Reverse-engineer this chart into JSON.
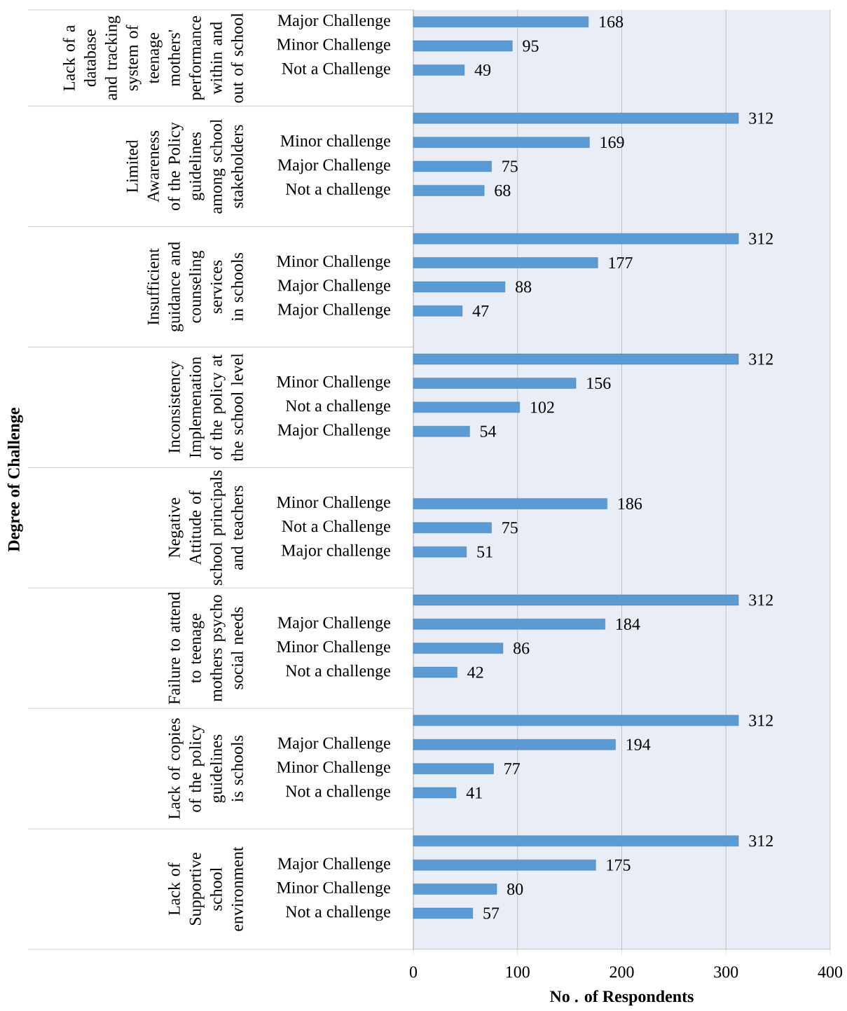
{
  "chart_data": {
    "type": "bar",
    "orientation": "horizontal",
    "xlabel": "No . of Respondents",
    "categories": [
      "Major Challenge",
      "Minor Challenge",
      "Not a Challenge",
      null,
      "Minor   challenge",
      "Major Challenge",
      "Not a challenge",
      null,
      "Minor Challenge",
      "Major Challenge",
      "Major Challenge",
      null,
      "Minor Challenge",
      "Not a challenge",
      "Major Challenge",
      null,
      "Minor  Challenge",
      "Not a  Challenge",
      "Major challenge",
      null,
      "Major Challenge",
      "Minor  Challenge",
      "Not a challenge",
      null,
      "Major Challenge",
      "Minor  Challenge",
      "Not a challenge",
      null,
      "Major Challenge",
      "Minor  Challenge",
      "Not a challenge"
    ],
    "values": [
      168,
      95,
      49,
      312,
      169,
      75,
      68,
      312,
      177,
      88,
      47,
      312,
      156,
      102,
      54,
      null,
      186,
      75,
      51,
      312,
      184,
      86,
      42,
      312,
      194,
      77,
      41,
      312,
      175,
      80,
      57
    ],
    "color": "#5b9bd5",
    "annotations": [
      "Degree of Challenge",
      "Lack of a database and tracking system of teenage mothers' performance within and out of school",
      "Limited Awareness of the Policy guidelines among school stakeholders",
      "Insufficient guidance and counseling services in schools",
      "Inconsistency Implemenation of the policy at the school level",
      "Negative Attitude of school principals and teachers",
      "Failure to attend to teenage mothers psycho social needs",
      "Lack of copies of the policy guidelines is schools",
      "Lack of Supportive school environment"
    ],
    "xlim": [
      0,
      400
    ],
    "xticks": [
      0,
      100,
      200,
      300,
      400
    ],
    "grid": "x",
    "data_labels": true
  }
}
